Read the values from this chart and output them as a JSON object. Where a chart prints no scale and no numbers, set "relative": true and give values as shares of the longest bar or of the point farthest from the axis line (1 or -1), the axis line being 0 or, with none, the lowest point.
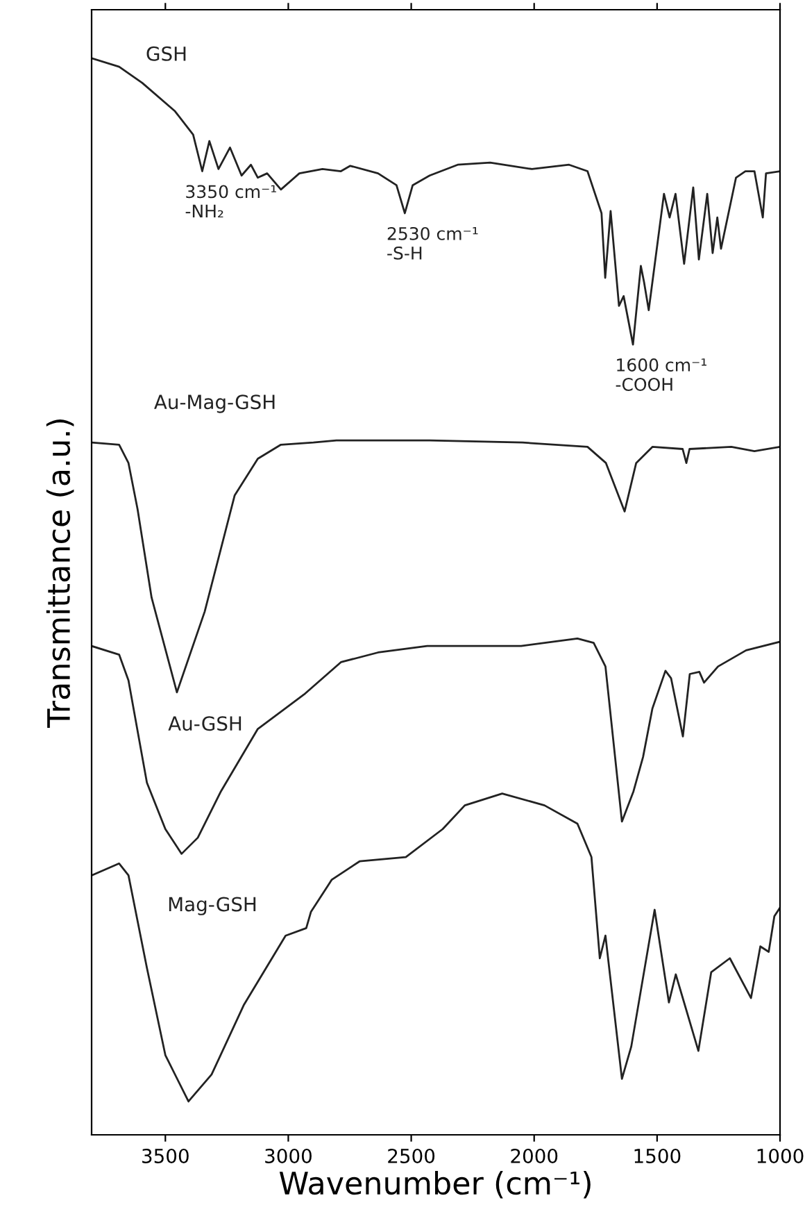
{
  "chart_data": {
    "type": "line",
    "relative": true,
    "xlabel": "Wavenumber (cm⁻¹)",
    "ylabel": "Transmittance (a.u.)",
    "xlim": [
      3800,
      1000
    ],
    "xticks": [
      3500,
      3000,
      2500,
      2000,
      1500,
      1000
    ],
    "grid": false,
    "legend": false,
    "marker": "none",
    "line_style": "solid",
    "series": [
      {
        "name": "GSH",
        "color": "#222222",
        "x": [
          3800,
          3688,
          3594,
          3462,
          3387,
          3350,
          3321,
          3284,
          3237,
          3190,
          3152,
          3124,
          3086,
          3030,
          2955,
          2861,
          2786,
          2748,
          2635,
          2560,
          2526,
          2494,
          2425,
          2311,
          2179,
          2009,
          1858,
          1783,
          1726,
          1711,
          1689,
          1655,
          1636,
          1598,
          1566,
          1553,
          1534,
          1472,
          1449,
          1425,
          1390,
          1353,
          1330,
          1296,
          1274,
          1255,
          1240,
          1179,
          1141,
          1104,
          1070,
          1057,
          1000
        ],
        "values": [
          1.0,
          0.992,
          0.977,
          0.951,
          0.929,
          0.895,
          0.923,
          0.897,
          0.917,
          0.891,
          0.901,
          0.889,
          0.893,
          0.878,
          0.893,
          0.897,
          0.895,
          0.9,
          0.893,
          0.882,
          0.856,
          0.882,
          0.891,
          0.901,
          0.903,
          0.897,
          0.901,
          0.895,
          0.856,
          0.796,
          0.858,
          0.77,
          0.779,
          0.734,
          0.807,
          0.792,
          0.766,
          0.874,
          0.852,
          0.874,
          0.809,
          0.88,
          0.813,
          0.874,
          0.819,
          0.852,
          0.823,
          0.889,
          0.895,
          0.895,
          0.852,
          0.893,
          0.895
        ]
      },
      {
        "name": "Au-Mag-GSH",
        "color": "#222222",
        "x": [
          3800,
          3688,
          3650,
          3613,
          3556,
          3453,
          3340,
          3218,
          3124,
          3030,
          2898,
          2804,
          2425,
          2047,
          1783,
          1708,
          1632,
          1585,
          1519,
          1396,
          1381,
          1368,
          1198,
          1104,
          1000
        ],
        "values": [
          0.643,
          0.641,
          0.624,
          0.581,
          0.499,
          0.411,
          0.486,
          0.594,
          0.628,
          0.641,
          0.643,
          0.645,
          0.645,
          0.643,
          0.639,
          0.624,
          0.579,
          0.624,
          0.639,
          0.637,
          0.624,
          0.637,
          0.639,
          0.635,
          0.639
        ]
      },
      {
        "name": "Au-GSH",
        "color": "#222222",
        "x": [
          3800,
          3688,
          3650,
          3575,
          3500,
          3434,
          3368,
          3274,
          3124,
          2936,
          2786,
          2635,
          2435,
          2053,
          1824,
          1758,
          1710,
          1643,
          1596,
          1557,
          1519,
          1466,
          1443,
          1395,
          1367,
          1328,
          1309,
          1252,
          1138,
          1000
        ],
        "values": [
          0.454,
          0.446,
          0.422,
          0.327,
          0.284,
          0.261,
          0.276,
          0.319,
          0.377,
          0.409,
          0.439,
          0.448,
          0.454,
          0.454,
          0.461,
          0.457,
          0.435,
          0.291,
          0.319,
          0.351,
          0.396,
          0.431,
          0.424,
          0.37,
          0.428,
          0.43,
          0.42,
          0.435,
          0.45,
          0.458
        ]
      },
      {
        "name": "Mag-GSH",
        "color": "#222222",
        "x": [
          3800,
          3688,
          3650,
          3575,
          3500,
          3406,
          3312,
          3180,
          3011,
          2927,
          2908,
          2823,
          2710,
          2522,
          2372,
          2282,
          2130,
          1958,
          1824,
          1767,
          1733,
          1710,
          1643,
          1605,
          1510,
          1452,
          1424,
          1332,
          1280,
          1204,
          1118,
          1080,
          1046,
          1023,
          1000
        ],
        "values": [
          0.241,
          0.252,
          0.241,
          0.155,
          0.074,
          0.031,
          0.056,
          0.121,
          0.185,
          0.192,
          0.207,
          0.237,
          0.254,
          0.258,
          0.284,
          0.306,
          0.317,
          0.306,
          0.289,
          0.258,
          0.164,
          0.185,
          0.052,
          0.082,
          0.209,
          0.123,
          0.149,
          0.078,
          0.151,
          0.164,
          0.127,
          0.175,
          0.17,
          0.203,
          0.211
        ]
      }
    ],
    "annotations": [
      {
        "text": "3350 cm⁻¹\n-NH₂",
        "x": 3350,
        "y": 0.895
      },
      {
        "text": "2530 cm⁻¹\n-S-H",
        "x": 2530,
        "y": 0.856
      },
      {
        "text": "1600 cm⁻¹\n-COOH",
        "x": 1600,
        "y": 0.734
      }
    ]
  }
}
